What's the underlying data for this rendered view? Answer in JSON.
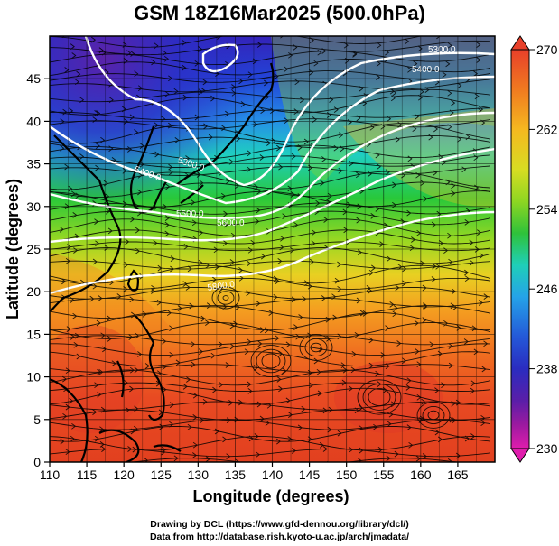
{
  "title": "GSM 18Z16Mar2025 (500.0hPa)",
  "xaxis": {
    "label": "Longitude (degrees)",
    "range": [
      110,
      170
    ],
    "ticks": [
      "110",
      "115",
      "120",
      "125",
      "130",
      "135",
      "140",
      "145",
      "150",
      "155",
      "160",
      "165"
    ]
  },
  "yaxis": {
    "label": "Latitude  (degrees)",
    "range": [
      0,
      50
    ],
    "ticks": [
      "0",
      "5",
      "10",
      "15",
      "20",
      "25",
      "30",
      "35",
      "40",
      "45"
    ]
  },
  "colorbar": {
    "range": [
      230,
      270
    ],
    "tick_labels": [
      "270",
      "262",
      "254",
      "246",
      "238",
      "230"
    ],
    "colors": [
      "#e8402a",
      "#f07a20",
      "#f5b820",
      "#d8dc22",
      "#8ed622",
      "#2fc23a",
      "#1fcfb8",
      "#25a3e8",
      "#2458d8",
      "#2a2cc0",
      "#5a1ea8",
      "#9b1aa0",
      "#e01dad"
    ]
  },
  "contours": {
    "labels": [
      "5300.0",
      "5400.0",
      "5300.0",
      "5400.0",
      "5500.0",
      "5600.0",
      "5800.0"
    ]
  },
  "credits": {
    "line1": "Drawing by DCL (https://www.gfd-dennou.org/library/dcl/)",
    "line2": "Data from http://database.rish.kyoto-u.ac.jp/arch/jmadata/"
  }
}
